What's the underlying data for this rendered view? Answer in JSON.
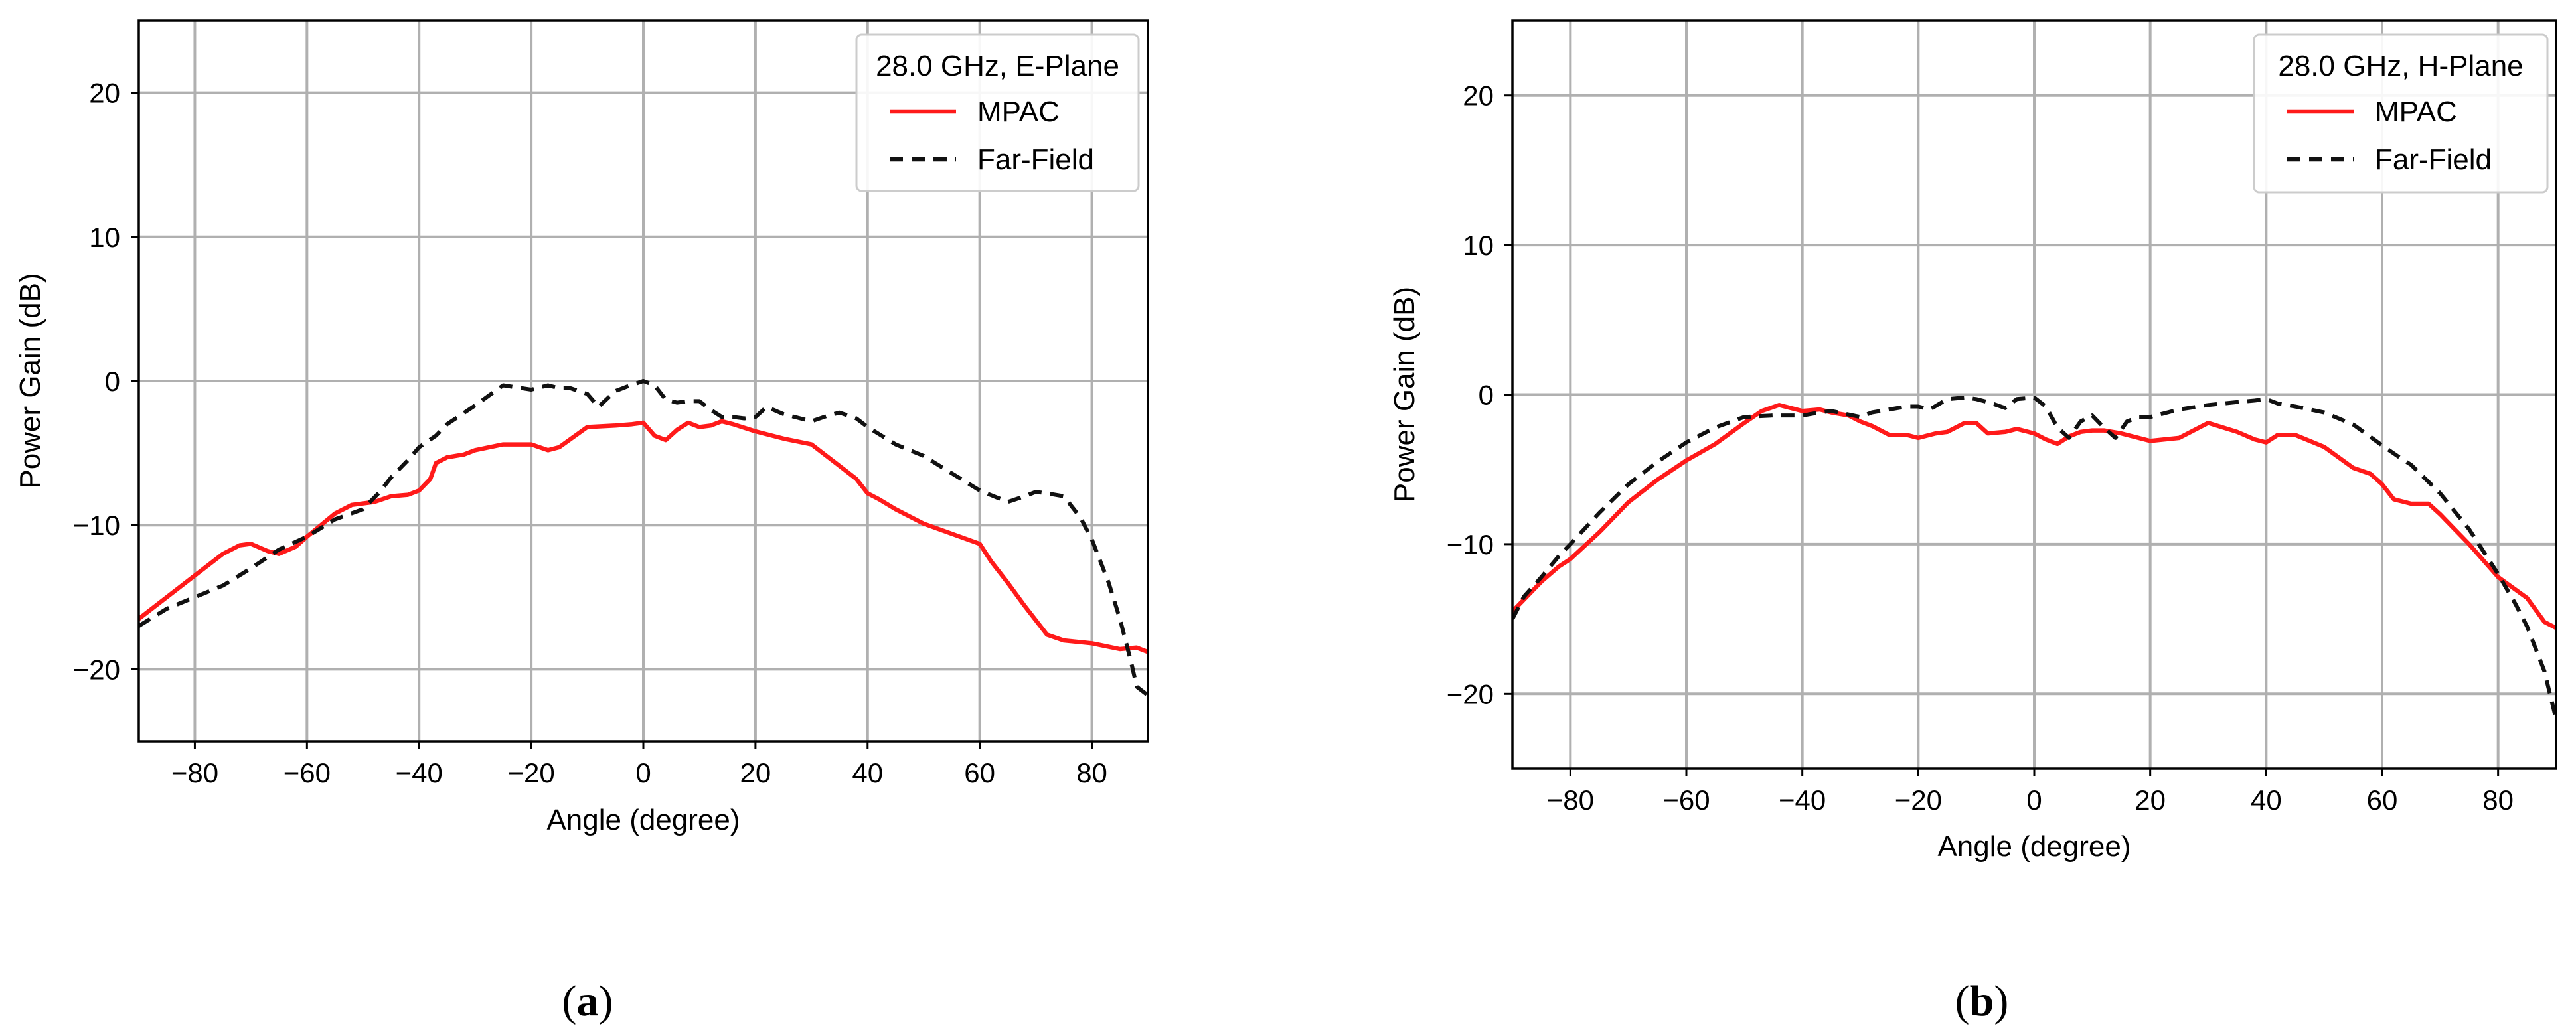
{
  "chart_data": [
    {
      "type": "line",
      "panel_label": "(a)",
      "xlabel": "Angle (degree)",
      "ylabel": "Power Gain (dB)",
      "xlim": [
        -90,
        90
      ],
      "ylim": [
        -25,
        25
      ],
      "xticks": [
        -80,
        -60,
        -40,
        -20,
        0,
        20,
        40,
        60,
        80
      ],
      "yticks": [
        -20,
        -10,
        0,
        10,
        20
      ],
      "grid": true,
      "legend_position": "top-right",
      "legend_title": "28.0 GHz, E-Plane",
      "series": [
        {
          "name": "MPAC",
          "color": "#ff1a1a",
          "style": "solid",
          "x": [
            -90,
            -85,
            -80,
            -75,
            -72,
            -70,
            -67,
            -65,
            -62,
            -60,
            -55,
            -52,
            -48,
            -45,
            -42,
            -40,
            -38,
            -37,
            -35,
            -32,
            -30,
            -25,
            -20,
            -17,
            -15,
            -10,
            -5,
            -2,
            0,
            2,
            4,
            6,
            8,
            10,
            12,
            14,
            16,
            20,
            25,
            30,
            35,
            38,
            40,
            42,
            45,
            50,
            55,
            60,
            62,
            65,
            68,
            72,
            75,
            80,
            85,
            88,
            90
          ],
          "y": [
            -16.5,
            -15,
            -13.5,
            -12,
            -11.4,
            -11.3,
            -11.8,
            -12,
            -11.5,
            -10.8,
            -9.2,
            -8.6,
            -8.4,
            -8.0,
            -7.9,
            -7.6,
            -6.8,
            -5.7,
            -5.3,
            -5.1,
            -4.8,
            -4.4,
            -4.4,
            -4.8,
            -4.6,
            -3.2,
            -3.1,
            -3.0,
            -2.9,
            -3.8,
            -4.1,
            -3.4,
            -2.9,
            -3.2,
            -3.1,
            -2.8,
            -3.0,
            -3.5,
            -4.0,
            -4.4,
            -5.9,
            -6.8,
            -7.8,
            -8.2,
            -8.9,
            -9.9,
            -10.6,
            -11.3,
            -12.5,
            -14,
            -15.6,
            -17.6,
            -18.0,
            -18.2,
            -18.6,
            -18.5,
            -18.8
          ]
        },
        {
          "name": "Far-Field",
          "color": "#111111",
          "style": "dashed",
          "x": [
            -90,
            -85,
            -80,
            -75,
            -70,
            -65,
            -60,
            -55,
            -50,
            -47,
            -45,
            -42,
            -40,
            -37,
            -35,
            -30,
            -25,
            -20,
            -17,
            -15,
            -13,
            -10,
            -8,
            -5,
            -3,
            0,
            2,
            4,
            6,
            8,
            10,
            12,
            14,
            16,
            18,
            20,
            22,
            25,
            28,
            30,
            33,
            35,
            38,
            40,
            45,
            50,
            55,
            60,
            65,
            68,
            70,
            72,
            75,
            78,
            80,
            83,
            85,
            87,
            88,
            90
          ],
          "y": [
            -17,
            -15.8,
            -15,
            -14.2,
            -13,
            -11.7,
            -10.8,
            -9.6,
            -8.9,
            -7.7,
            -6.7,
            -5.5,
            -4.6,
            -3.8,
            -3.0,
            -1.7,
            -0.3,
            -0.6,
            -0.3,
            -0.5,
            -0.5,
            -0.9,
            -1.8,
            -0.7,
            -0.4,
            0,
            -0.3,
            -1.3,
            -1.5,
            -1.4,
            -1.4,
            -2.0,
            -2.5,
            -2.5,
            -2.6,
            -2.5,
            -1.8,
            -2.3,
            -2.6,
            -2.8,
            -2.4,
            -2.2,
            -2.6,
            -3.2,
            -4.4,
            -5.2,
            -6.4,
            -7.6,
            -8.4,
            -8.0,
            -7.7,
            -7.8,
            -8.0,
            -9.5,
            -11.0,
            -14,
            -16.5,
            -19.5,
            -21.2,
            -21.8
          ]
        }
      ]
    },
    {
      "type": "line",
      "panel_label": "(b)",
      "xlabel": "Angle (degree)",
      "ylabel": "Power Gain (dB)",
      "xlim": [
        -90,
        90
      ],
      "ylim": [
        -25,
        25
      ],
      "xticks": [
        -80,
        -60,
        -40,
        -20,
        0,
        20,
        40,
        60,
        80
      ],
      "yticks": [
        -20,
        -10,
        0,
        10,
        20
      ],
      "grid": true,
      "legend_position": "top-right",
      "legend_title": "28.0 GHz, H-Plane",
      "series": [
        {
          "name": "MPAC",
          "color": "#ff1a1a",
          "style": "solid",
          "x": [
            -90,
            -88,
            -85,
            -82,
            -80,
            -75,
            -70,
            -65,
            -60,
            -55,
            -50,
            -47,
            -44,
            -42,
            -40,
            -37,
            -35,
            -32,
            -30,
            -28,
            -25,
            -22,
            -20,
            -17,
            -15,
            -12,
            -10,
            -8,
            -5,
            -3,
            0,
            2,
            4,
            6,
            8,
            10,
            12,
            15,
            20,
            25,
            30,
            35,
            38,
            40,
            42,
            45,
            50,
            55,
            58,
            60,
            62,
            65,
            68,
            70,
            75,
            80,
            85,
            88,
            90
          ],
          "y": [
            -14.5,
            -13.7,
            -12.5,
            -11.5,
            -11.0,
            -9.2,
            -7.2,
            -5.7,
            -4.4,
            -3.3,
            -1.9,
            -1.1,
            -0.7,
            -0.9,
            -1.1,
            -1.0,
            -1.2,
            -1.4,
            -1.8,
            -2.1,
            -2.7,
            -2.7,
            -2.9,
            -2.6,
            -2.5,
            -1.9,
            -1.9,
            -2.6,
            -2.5,
            -2.3,
            -2.6,
            -3.0,
            -3.3,
            -2.8,
            -2.5,
            -2.4,
            -2.4,
            -2.6,
            -3.1,
            -2.9,
            -1.9,
            -2.5,
            -3.0,
            -3.2,
            -2.7,
            -2.7,
            -3.5,
            -4.9,
            -5.3,
            -6.0,
            -7.0,
            -7.3,
            -7.3,
            -8.0,
            -10.0,
            -12.2,
            -13.6,
            -15.2,
            -15.6
          ]
        },
        {
          "name": "Far-Field",
          "color": "#111111",
          "style": "dashed",
          "x": [
            -90,
            -88,
            -85,
            -82,
            -80,
            -75,
            -70,
            -65,
            -60,
            -55,
            -50,
            -45,
            -40,
            -37,
            -35,
            -30,
            -28,
            -25,
            -22,
            -20,
            -18,
            -15,
            -12,
            -10,
            -8,
            -5,
            -3,
            0,
            2,
            4,
            6,
            8,
            10,
            12,
            14,
            16,
            18,
            20,
            25,
            30,
            35,
            38,
            40,
            42,
            45,
            50,
            55,
            60,
            63,
            65,
            70,
            75,
            80,
            83,
            85,
            88,
            90
          ],
          "y": [
            -15,
            -13.5,
            -12.2,
            -10.8,
            -10.0,
            -7.9,
            -6.0,
            -4.5,
            -3.2,
            -2.2,
            -1.5,
            -1.4,
            -1.4,
            -1.2,
            -1.1,
            -1.5,
            -1.2,
            -1.0,
            -0.8,
            -0.8,
            -1.0,
            -0.3,
            -0.2,
            -0.3,
            -0.5,
            -0.9,
            -0.3,
            -0.2,
            -0.8,
            -2.2,
            -2.9,
            -1.8,
            -1.4,
            -2.2,
            -2.9,
            -1.8,
            -1.5,
            -1.5,
            -1.0,
            -0.7,
            -0.5,
            -0.4,
            -0.3,
            -0.6,
            -0.8,
            -1.2,
            -2.0,
            -3.4,
            -4.2,
            -4.7,
            -6.6,
            -9.0,
            -12.0,
            -14.0,
            -15.5,
            -18.5,
            -21.7
          ]
        }
      ]
    }
  ]
}
